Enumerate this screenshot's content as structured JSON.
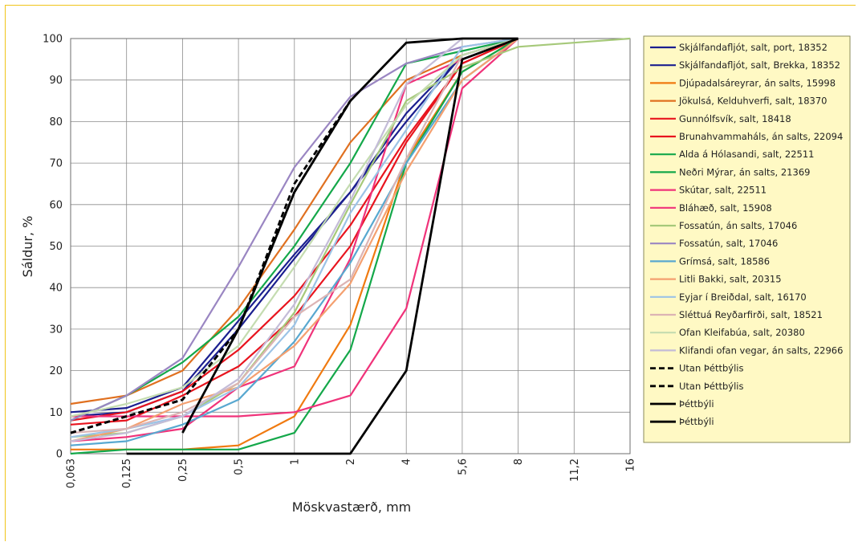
{
  "chart_data": {
    "type": "line",
    "xlabel": "Möskvastærð, mm",
    "ylabel": "Sáldur, %",
    "categories": [
      "0,063",
      "0,125",
      "0,25",
      "0,5",
      "1",
      "2",
      "4",
      "5,6",
      "8",
      "11,2",
      "16"
    ],
    "ylim": [
      0,
      100
    ],
    "yticks": [
      0,
      10,
      20,
      30,
      40,
      50,
      60,
      70,
      80,
      90,
      100
    ],
    "grid": true,
    "legend_position": "right",
    "series": [
      {
        "name": "Skjálfandafljót, salt, port, 18352",
        "color": "#1b1f8f",
        "dash": "solid",
        "values": [
          10,
          11,
          16,
          32,
          48,
          63,
          80,
          96,
          100,
          null,
          null
        ]
      },
      {
        "name": "Skjálfandafljót, salt, Brekka, 18352",
        "color": "#1b1f8f",
        "dash": "solid",
        "values": [
          9,
          10,
          15,
          30,
          47,
          63,
          82,
          96,
          100,
          null,
          null
        ]
      },
      {
        "name": "Djúpadalsáreyrar, án salts, 15998",
        "color": "#f07a10",
        "dash": "solid",
        "values": [
          1,
          1,
          1,
          2,
          9,
          31,
          71,
          92,
          100,
          null,
          null
        ]
      },
      {
        "name": "Jökulsá, Kelduhverfi, salt, 18370",
        "color": "#e07020",
        "dash": "solid",
        "values": [
          12,
          14,
          20,
          35,
          54,
          75,
          90,
          96,
          100,
          null,
          null
        ]
      },
      {
        "name": "Gunnólfsvík, salt, 18418",
        "color": "#e8141e",
        "dash": "solid",
        "values": [
          8,
          10,
          15,
          25,
          38,
          55,
          76,
          94,
          100,
          null,
          null
        ]
      },
      {
        "name": "Brunahvammaháls, án salts, 22094",
        "color": "#e8141e",
        "dash": "solid",
        "values": [
          7,
          8,
          14,
          21,
          33,
          50,
          75,
          94,
          100,
          null,
          null
        ]
      },
      {
        "name": "Alda á Hólasandi, salt, 22511",
        "color": "#14a84a",
        "dash": "solid",
        "values": [
          8,
          14,
          22,
          33,
          50,
          70,
          94,
          97,
          100,
          null,
          null
        ]
      },
      {
        "name": "Neðri Mýrar, án salts, 21369",
        "color": "#14a84a",
        "dash": "solid",
        "values": [
          0,
          1,
          1,
          1,
          5,
          25,
          70,
          92,
          100,
          null,
          null
        ]
      },
      {
        "name": "Skútar,  salt, 22511",
        "color": "#f0337a",
        "dash": "solid",
        "values": [
          3,
          4,
          6,
          16,
          21,
          47,
          89,
          95,
          100,
          null,
          null
        ]
      },
      {
        "name": "Bláhæð, salt, 15908",
        "color": "#f0337a",
        "dash": "solid",
        "values": [
          9,
          9,
          9,
          9,
          10,
          14,
          35,
          88,
          100,
          null,
          null
        ]
      },
      {
        "name": "Fossatún, án salts, 17046",
        "color": "#a6c97a",
        "dash": "solid",
        "values": [
          4,
          5,
          9,
          17,
          34,
          60,
          85,
          93,
          98,
          99,
          100
        ]
      },
      {
        "name": "Fossatún, salt, 17046",
        "color": "#9a86c2",
        "dash": "solid",
        "values": [
          8,
          14,
          23,
          45,
          69,
          86,
          94,
          98,
          100,
          null,
          null
        ]
      },
      {
        "name": "Grímsá, salt, 18586",
        "color": "#58a8d0",
        "dash": "solid",
        "values": [
          2,
          3,
          7,
          13,
          27,
          46,
          70,
          90,
          100,
          null,
          null
        ]
      },
      {
        "name": "Litli Bakki, salt, 20315",
        "color": "#f4a070",
        "dash": "solid",
        "values": [
          3,
          6,
          12,
          16,
          26,
          41,
          68,
          90,
          100,
          null,
          null
        ]
      },
      {
        "name": "Eyjar í Breiðdal, salt, 16170",
        "color": "#9cc3e6",
        "dash": "solid",
        "values": [
          4,
          6,
          9,
          16,
          31,
          58,
          78,
          98,
          100,
          null,
          null
        ]
      },
      {
        "name": "Sléttuá Reyðarfirði, salt, 18521",
        "color": "#dcb4b4",
        "dash": "solid",
        "values": [
          5,
          6,
          10,
          17,
          33,
          42,
          71,
          96,
          100,
          null,
          null
        ]
      },
      {
        "name": "Ofan Kleifabúa, salt, 20380",
        "color": "#c4dcb0",
        "dash": "solid",
        "values": [
          9,
          12,
          16,
          26,
          45,
          65,
          84,
          96,
          100,
          null,
          null
        ]
      },
      {
        "name": "Klifandi ofan vegar, án salts, 22966",
        "color": "#c4bcd8",
        "dash": "solid",
        "values": [
          3,
          5,
          9,
          18,
          36,
          61,
          89,
          100,
          100,
          null,
          null
        ]
      },
      {
        "name": "Utan Þéttbýlis",
        "color": "#000000",
        "dash": "dashed",
        "values": [
          5,
          9,
          13,
          30,
          65,
          85,
          null,
          null,
          null,
          null,
          null
        ]
      },
      {
        "name": "Utan Þéttbýlis",
        "color": "#000000",
        "dash": "dashed",
        "values": [
          5,
          9,
          13,
          30,
          63,
          85,
          null,
          null,
          null,
          null,
          null
        ]
      },
      {
        "name": "Þéttbýli",
        "color": "#000000",
        "dash": "solid",
        "values": [
          null,
          null,
          5,
          30,
          63,
          85,
          99,
          100,
          100,
          null,
          null
        ]
      },
      {
        "name": "Þéttbýli",
        "color": "#000000",
        "dash": "solid",
        "values": [
          null,
          0,
          0,
          0,
          0,
          0,
          20,
          95,
          100,
          null,
          null
        ]
      }
    ]
  }
}
